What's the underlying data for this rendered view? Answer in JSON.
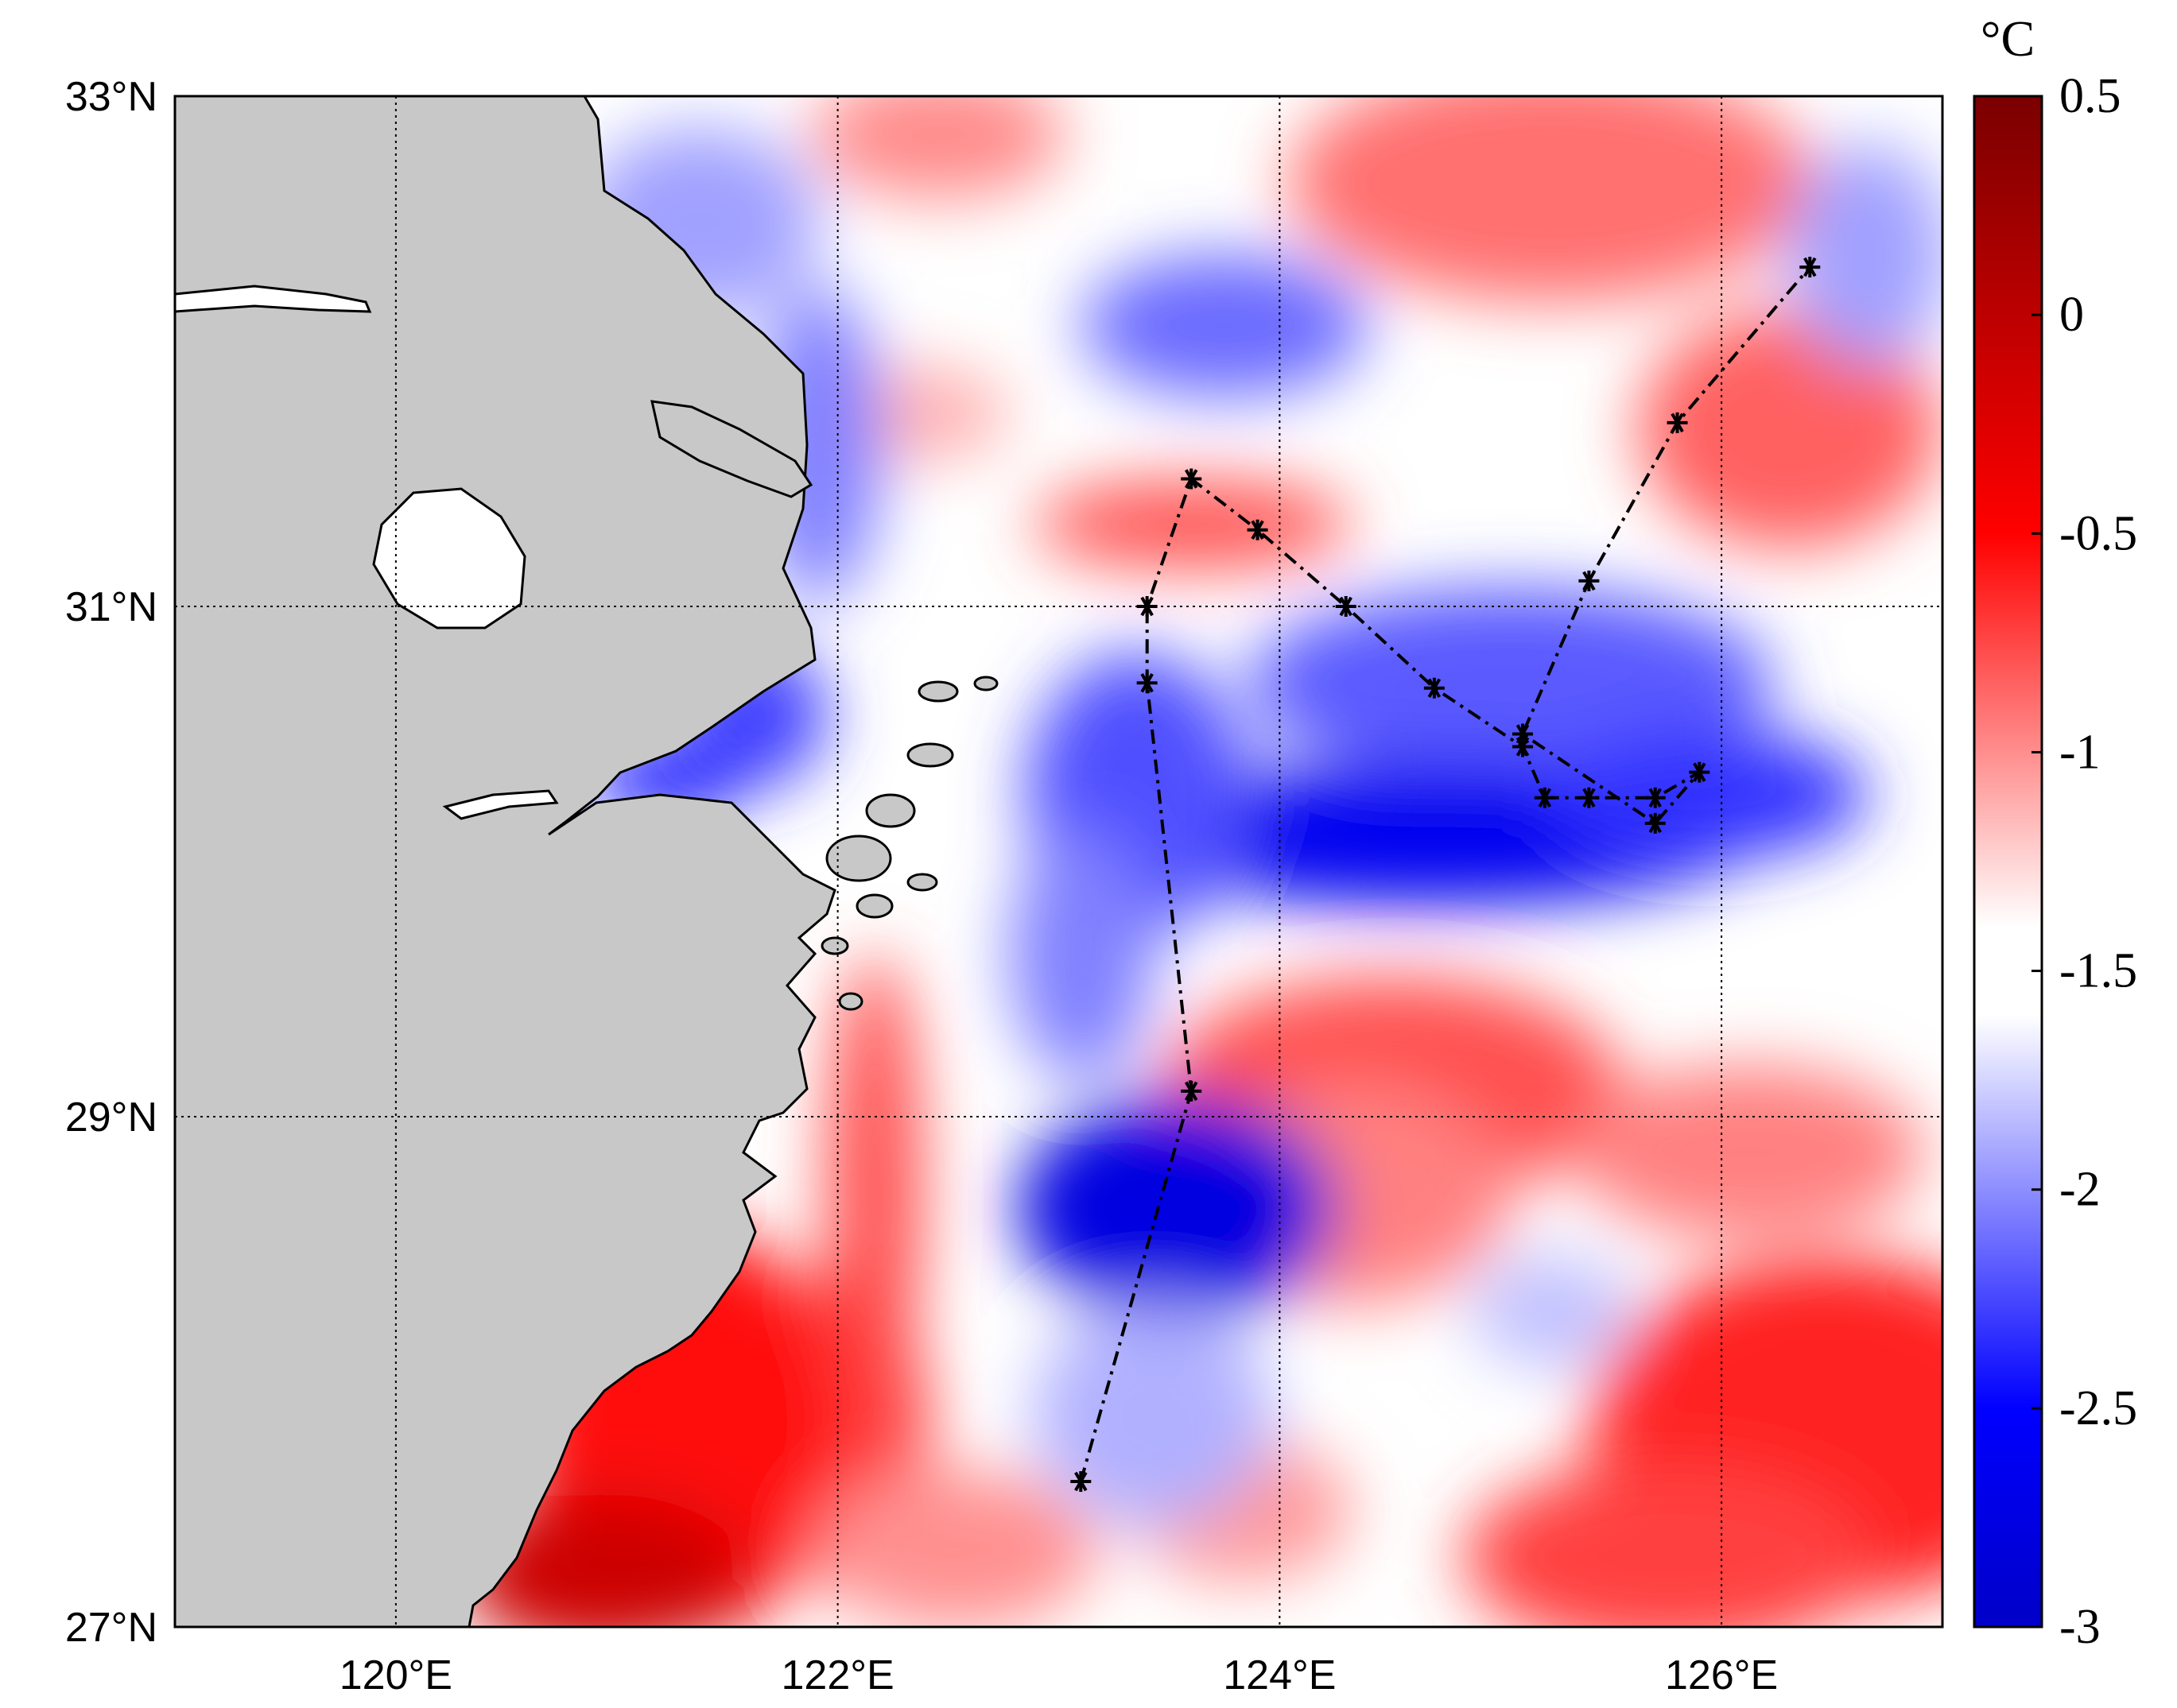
{
  "map": {
    "extent": {
      "lon_min": 119,
      "lon_max": 127,
      "lat_min": 27,
      "lat_max": 33
    },
    "lon_ticks": [
      {
        "value": 120,
        "label": "120°E"
      },
      {
        "value": 122,
        "label": "122°E"
      },
      {
        "value": 124,
        "label": "124°E"
      },
      {
        "value": 126,
        "label": "126°E"
      }
    ],
    "lat_ticks": [
      {
        "value": 27,
        "label": "27°N"
      },
      {
        "value": 29,
        "label": "29°N"
      },
      {
        "value": 31,
        "label": "31°N"
      },
      {
        "value": 33,
        "label": "33°N"
      }
    ],
    "gridlines": true,
    "colors": {
      "land": "#c8c8c8",
      "coast": "#000000",
      "track": "#000000"
    }
  },
  "colorbar": {
    "unit": "°C",
    "range": [
      -3,
      0.5
    ],
    "ticks": [
      {
        "value": 0.5,
        "label": "0.5"
      },
      {
        "value": 0,
        "label": "0"
      },
      {
        "value": -0.5,
        "label": "-0.5"
      },
      {
        "value": -1,
        "label": "-1"
      },
      {
        "value": -1.5,
        "label": "-1.5"
      },
      {
        "value": -2,
        "label": "-2"
      },
      {
        "value": -2.5,
        "label": "-2.5"
      },
      {
        "value": -3,
        "label": "-3"
      }
    ],
    "stops": [
      {
        "value": -3.0,
        "color": "#0000c8"
      },
      {
        "value": -2.5,
        "color": "#0000ff"
      },
      {
        "value": -1.6,
        "color": "#ffffff"
      },
      {
        "value": -1.4,
        "color": "#ffffff"
      },
      {
        "value": -0.5,
        "color": "#ff0000"
      },
      {
        "value": 0.5,
        "color": "#7a0000"
      }
    ]
  },
  "track_points": [
    [
      123.1,
      27.57
    ],
    [
      123.6,
      29.1
    ],
    [
      123.4,
      30.7
    ],
    [
      123.4,
      31.0
    ],
    [
      123.6,
      31.5
    ],
    [
      123.9,
      31.3
    ],
    [
      124.3,
      31.0
    ],
    [
      124.7,
      30.68
    ],
    [
      125.1,
      30.45
    ],
    [
      125.2,
      30.25
    ],
    [
      125.4,
      30.25
    ],
    [
      125.7,
      30.25
    ],
    [
      125.9,
      30.35
    ],
    [
      125.7,
      30.15
    ],
    [
      125.1,
      30.5
    ],
    [
      125.4,
      31.1
    ],
    [
      125.8,
      31.72
    ],
    [
      126.4,
      32.33
    ]
  ]
}
